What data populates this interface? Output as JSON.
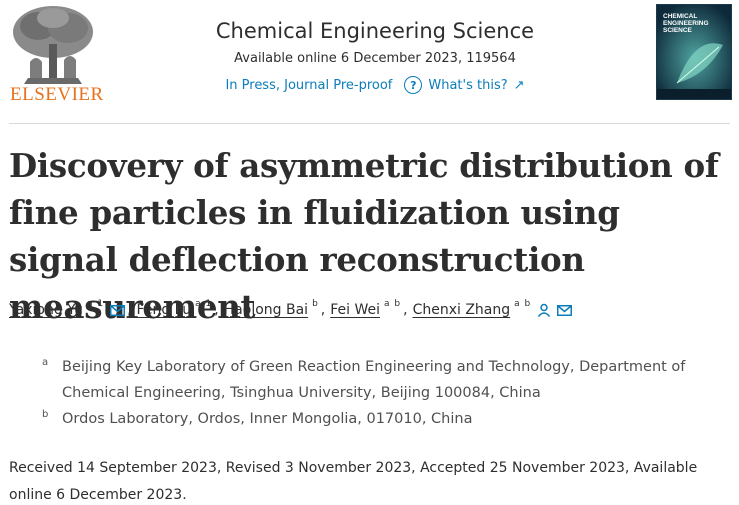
{
  "publisher": {
    "name": "ELSEVIER",
    "color": "#e9711c"
  },
  "journal": {
    "title": "Chemical Engineering Science",
    "availability": "Available online 6 December 2023, 119564",
    "status": "In Press, Journal Pre-proof",
    "help_label": "What's this?",
    "link_color": "#0c7dbb"
  },
  "cover": {
    "title": "CHEMICAL ENGINEERING SCIENCE"
  },
  "article": {
    "title": "Discovery of asymmetric distribution of fine particles in fluidization using signal deflection reconstruction measurement"
  },
  "authors": [
    {
      "name": "Yaxiong Yu",
      "sup": "a 1"
    },
    {
      "name": "Feng Lu",
      "sup": "a 1"
    },
    {
      "name": "Haolong Bai",
      "sup": "b"
    },
    {
      "name": "Fei Wei",
      "sup": "a b"
    },
    {
      "name": "Chenxi Zhang",
      "sup": "a b"
    }
  ],
  "separator": ",",
  "affiliations": [
    {
      "label": "a",
      "text": "Beijing Key Laboratory of Green Reaction Engineering and Technology, Department of Chemical Engineering, Tsinghua University, Beijing 100084, China"
    },
    {
      "label": "b",
      "text": "Ordos Laboratory, Ordos, Inner Mongolia, 017010, China"
    }
  ],
  "dates": "Received 14 September 2023, Revised 3 November 2023, Accepted 25 November 2023, Available online 6 December 2023."
}
